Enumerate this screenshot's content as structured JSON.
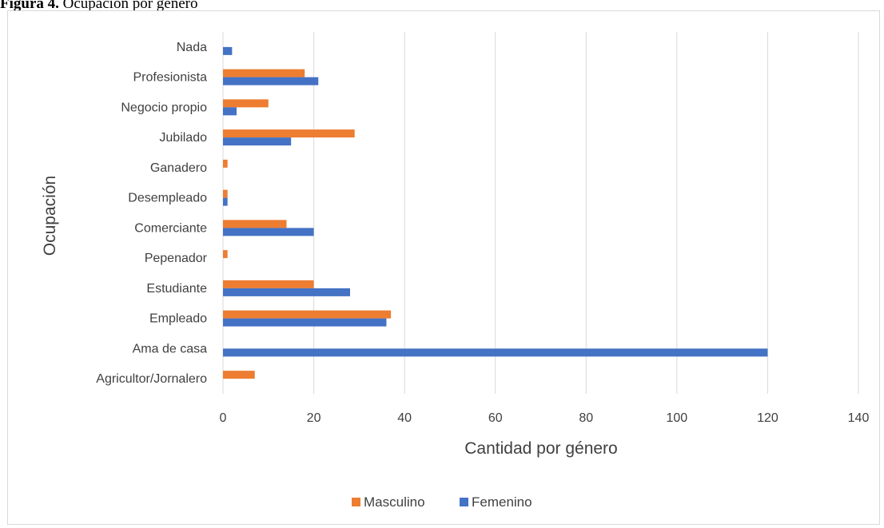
{
  "caption": {
    "label": "Figura 4.",
    "text": "Ocupación por género"
  },
  "chart_data": {
    "type": "bar",
    "orientation": "horizontal",
    "categories": [
      "Agricultor/Jornalero",
      "Ama de casa",
      "Empleado",
      "Estudiante",
      "Pepenador",
      "Comerciante",
      "Desempleado",
      "Ganadero",
      "Jubilado",
      "Negocio propio",
      "Profesionista",
      "Nada"
    ],
    "series": [
      {
        "name": "Masculino",
        "color": "#ed7d31",
        "values": [
          7,
          0,
          37,
          20,
          1,
          14,
          1,
          1,
          29,
          10,
          18,
          0
        ]
      },
      {
        "name": "Femenino",
        "color": "#4472c4",
        "values": [
          0,
          120,
          36,
          28,
          0,
          20,
          1,
          0,
          15,
          3,
          21,
          2
        ]
      }
    ],
    "xlabel": "Cantidad por género",
    "ylabel": "Ocupación",
    "xlim": [
      0,
      140
    ],
    "xticks": [
      0,
      20,
      40,
      60,
      80,
      100,
      120,
      140
    ],
    "grid": "vertical",
    "legend_position": "bottom"
  }
}
